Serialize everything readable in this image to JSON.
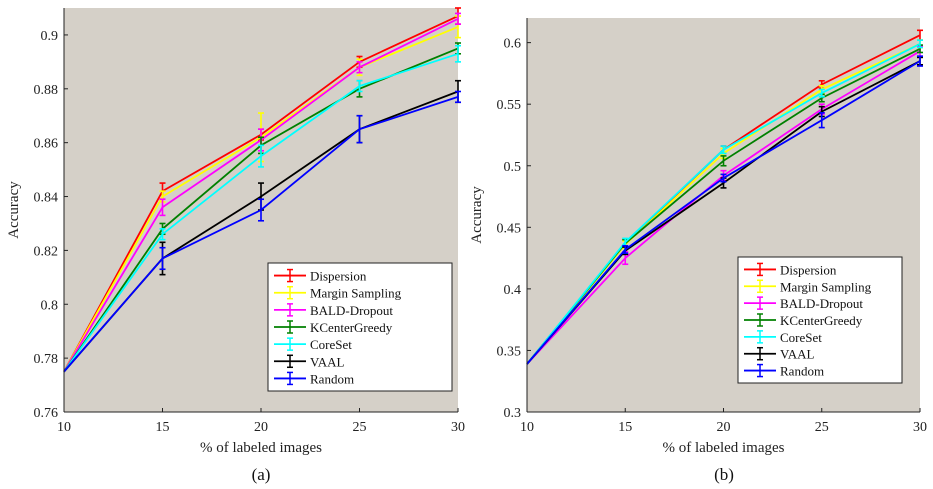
{
  "chart_data": [
    {
      "type": "line",
      "caption": "(a)",
      "xlabel": "% of labeled images",
      "ylabel": "Accuracy",
      "x": [
        10,
        15,
        20,
        25,
        30
      ],
      "xticks": [
        "10",
        "15",
        "20",
        "25",
        "30"
      ],
      "xlim": [
        10,
        30
      ],
      "ylim": [
        0.76,
        0.91
      ],
      "yticks": [
        "0.76",
        "0.78",
        "0.8",
        "0.82",
        "0.84",
        "0.86",
        "0.88",
        "0.9"
      ],
      "grid": false,
      "background": "#d5d0c8",
      "legend_position": "bottom-right",
      "series": [
        {
          "name": "Dispersion",
          "color": "#ff0000",
          "values": [
            0.775,
            0.842,
            0.863,
            0.89,
            0.907
          ],
          "errors": [
            0,
            0.003,
            0.002,
            0.002,
            0.003
          ]
        },
        {
          "name": "Margin Sampling",
          "color": "#ffff00",
          "values": [
            0.775,
            0.84,
            0.862,
            0.888,
            0.903
          ],
          "errors": [
            0,
            0.002,
            0.009,
            0.003,
            0.004
          ]
        },
        {
          "name": "BALD-Dropout",
          "color": "#ff00ff",
          "values": [
            0.775,
            0.836,
            0.861,
            0.888,
            0.906
          ],
          "errors": [
            0,
            0.003,
            0.004,
            0.002,
            0.002
          ]
        },
        {
          "name": "KCenterGreedy",
          "color": "#008000",
          "values": [
            0.775,
            0.828,
            0.859,
            0.88,
            0.895
          ],
          "errors": [
            0,
            0.002,
            0.003,
            0.003,
            0.002
          ]
        },
        {
          "name": "CoreSet",
          "color": "#00ffff",
          "values": [
            0.775,
            0.826,
            0.855,
            0.881,
            0.893
          ],
          "errors": [
            0,
            0.002,
            0.004,
            0.002,
            0.003
          ]
        },
        {
          "name": "VAAL",
          "color": "#000000",
          "values": [
            0.775,
            0.817,
            0.84,
            0.865,
            0.879
          ],
          "errors": [
            0,
            0.006,
            0.005,
            0.005,
            0.004
          ]
        },
        {
          "name": "Random",
          "color": "#0000ff",
          "values": [
            0.775,
            0.817,
            0.835,
            0.865,
            0.877
          ],
          "errors": [
            0,
            0.004,
            0.004,
            0.005,
            0.002
          ]
        }
      ]
    },
    {
      "type": "line",
      "caption": "(b)",
      "xlabel": "% of labeled images",
      "ylabel": "Accuracy",
      "x": [
        10,
        15,
        20,
        25,
        30
      ],
      "xticks": [
        "10",
        "15",
        "20",
        "25",
        "30"
      ],
      "xlim": [
        10,
        30
      ],
      "ylim": [
        0.3,
        0.62
      ],
      "yticks": [
        "0.3",
        "0.35",
        "0.4",
        "0.45",
        "0.5",
        "0.55",
        "0.6"
      ],
      "grid": false,
      "background": "#d5d0c8",
      "legend_position": "bottom-right",
      "series": [
        {
          "name": "Dispersion",
          "color": "#ff0000",
          "values": [
            0.339,
            0.437,
            0.513,
            0.566,
            0.606
          ],
          "errors": [
            0,
            0.003,
            0.003,
            0.003,
            0.004
          ]
        },
        {
          "name": "Margin Sampling",
          "color": "#ffff00",
          "values": [
            0.339,
            0.436,
            0.51,
            0.562,
            0.599
          ],
          "errors": [
            0,
            0.003,
            0.004,
            0.003,
            0.003
          ]
        },
        {
          "name": "BALD-Dropout",
          "color": "#ff00ff",
          "values": [
            0.339,
            0.425,
            0.492,
            0.546,
            0.593
          ],
          "errors": [
            0,
            0.005,
            0.004,
            0.004,
            0.004
          ]
        },
        {
          "name": "KCenterGreedy",
          "color": "#008000",
          "values": [
            0.339,
            0.437,
            0.504,
            0.555,
            0.595
          ],
          "errors": [
            0,
            0.003,
            0.004,
            0.003,
            0.003
          ]
        },
        {
          "name": "CoreSet",
          "color": "#00ffff",
          "values": [
            0.339,
            0.438,
            0.513,
            0.559,
            0.599
          ],
          "errors": [
            0,
            0.003,
            0.003,
            0.003,
            0.003
          ]
        },
        {
          "name": "VAAL",
          "color": "#000000",
          "values": [
            0.339,
            0.431,
            0.486,
            0.544,
            0.585
          ],
          "errors": [
            0,
            0.003,
            0.004,
            0.004,
            0.003
          ]
        },
        {
          "name": "Random",
          "color": "#0000ff",
          "values": [
            0.339,
            0.432,
            0.49,
            0.537,
            0.585
          ],
          "errors": [
            0,
            0.003,
            0.003,
            0.006,
            0.004
          ]
        }
      ]
    }
  ]
}
